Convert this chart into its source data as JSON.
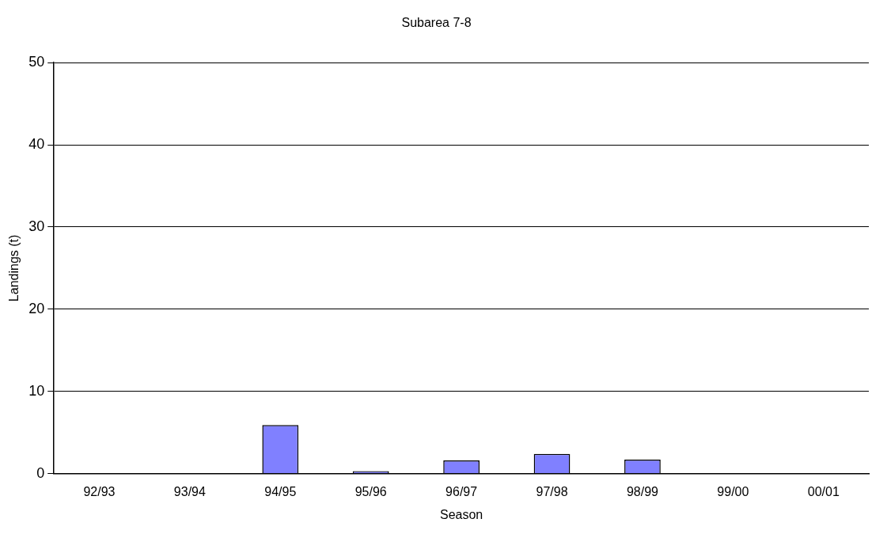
{
  "chart_data": {
    "type": "bar",
    "title": "Subarea 7-8",
    "xlabel": "Season",
    "ylabel": "Landings (t)",
    "categories": [
      "92/93",
      "93/94",
      "94/95",
      "95/96",
      "96/97",
      "97/98",
      "98/99",
      "99/00",
      "00/01"
    ],
    "values": [
      0,
      0,
      5.9,
      0.3,
      1.6,
      2.4,
      1.7,
      0,
      0
    ],
    "color": "#8080ff",
    "ylim": [
      0,
      50
    ],
    "yticks": [
      0,
      10,
      20,
      30,
      40,
      50
    ],
    "grid": "y",
    "legend": false
  }
}
